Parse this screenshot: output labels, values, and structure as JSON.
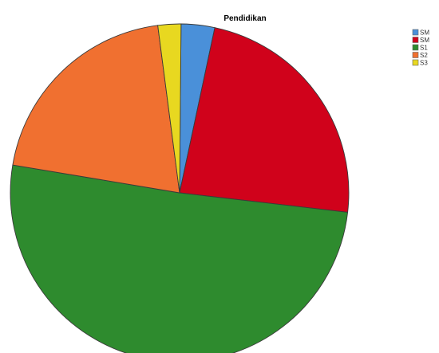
{
  "chart_data": {
    "type": "pie",
    "title": "Pendidikan",
    "legend_position": "top-right",
    "slices": [
      {
        "label": "SM",
        "value": 3.2,
        "color": "#4a90d9"
      },
      {
        "label": "SM",
        "value": 23.5,
        "color": "#d0021b"
      },
      {
        "label": "S1",
        "value": 50.8,
        "color": "#2e8b2e"
      },
      {
        "label": "S2",
        "value": 20.3,
        "color": "#f07030"
      },
      {
        "label": "S3",
        "value": 2.2,
        "color": "#e8d820"
      }
    ]
  }
}
